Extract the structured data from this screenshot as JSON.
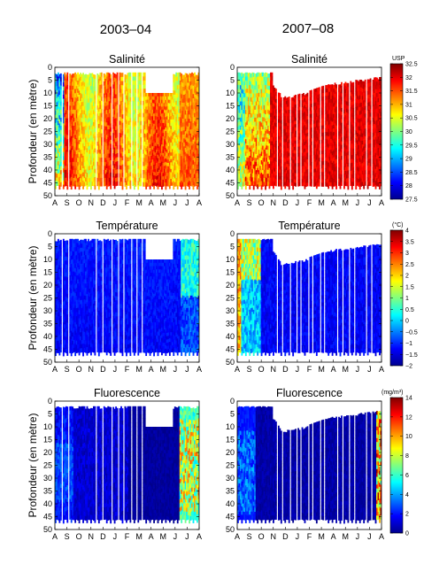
{
  "columns": [
    {
      "title": "2003–04"
    },
    {
      "title": "2007–08"
    }
  ],
  "ylabel": "Profondeur (en mètre)",
  "x_ticks": [
    "A",
    "S",
    "O",
    "N",
    "D",
    "J",
    "F",
    "M",
    "A",
    "M",
    "J",
    "J",
    "A"
  ],
  "y_ticks": [
    0,
    5,
    10,
    15,
    20,
    25,
    30,
    35,
    40,
    45,
    50
  ],
  "chart_data": [
    {
      "type": "heatmap",
      "title": "Salinité",
      "variable": "salinity",
      "unit": "USP",
      "ylim": [
        0,
        50
      ],
      "colorbar": {
        "min": 27.5,
        "max": 32.5,
        "ticks": [
          "27.5",
          "28",
          "28.5",
          "29",
          "29.5",
          "30",
          "30.5",
          "31",
          "31.5",
          "32",
          "32.5"
        ]
      },
      "panels": [
        {
          "season": "2003–04",
          "x_ticks": [
            "A",
            "S",
            "O",
            "N",
            "D",
            "J",
            "F",
            "M",
            "A",
            "M",
            "J",
            "J",
            "A"
          ],
          "depth_range": [
            2,
            46
          ]
        },
        {
          "season": "2007–08",
          "x_ticks": [
            "A",
            "S",
            "O",
            "N",
            "D",
            "J",
            "F",
            "M",
            "A",
            "M",
            "J",
            "J",
            "A"
          ],
          "depth_range": [
            2,
            46
          ]
        }
      ]
    },
    {
      "type": "heatmap",
      "title": "Température",
      "variable": "temperature",
      "unit": "(°C)",
      "ylim": [
        0,
        50
      ],
      "colorbar": {
        "min": -2,
        "max": 4,
        "ticks": [
          "−2",
          "−1.5",
          "−1",
          "−0.5",
          "0",
          "0.5",
          "1",
          "1.5",
          "2",
          "2.5",
          "3",
          "3.5",
          "4"
        ]
      },
      "panels": [
        {
          "season": "2003–04",
          "x_ticks": [
            "A",
            "S",
            "O",
            "N",
            "D",
            "J",
            "F",
            "M",
            "A",
            "M",
            "J",
            "J",
            "A"
          ],
          "depth_range": [
            2,
            46
          ]
        },
        {
          "season": "2007–08",
          "x_ticks": [
            "A",
            "S",
            "O",
            "N",
            "D",
            "J",
            "F",
            "M",
            "A",
            "M",
            "J",
            "J",
            "A"
          ],
          "depth_range": [
            2,
            46
          ]
        }
      ]
    },
    {
      "type": "heatmap",
      "title": "Fluorescence",
      "variable": "fluorescence",
      "unit": "(mg/m³)",
      "ylim": [
        0,
        50
      ],
      "colorbar": {
        "min": 0,
        "max": 14,
        "ticks": [
          "0",
          "2",
          "4",
          "6",
          "8",
          "10",
          "12",
          "14"
        ]
      },
      "panels": [
        {
          "season": "2003–04",
          "x_ticks": [
            "A",
            "S",
            "O",
            "N",
            "D",
            "J",
            "F",
            "M",
            "A",
            "M",
            "J",
            "J",
            "A"
          ],
          "depth_range": [
            2,
            46
          ]
        },
        {
          "season": "2007–08",
          "x_ticks": [
            "A",
            "S",
            "O",
            "N",
            "D",
            "J",
            "F",
            "M",
            "A",
            "M",
            "J",
            "J",
            "A"
          ],
          "depth_range": [
            2,
            46
          ]
        }
      ]
    }
  ]
}
